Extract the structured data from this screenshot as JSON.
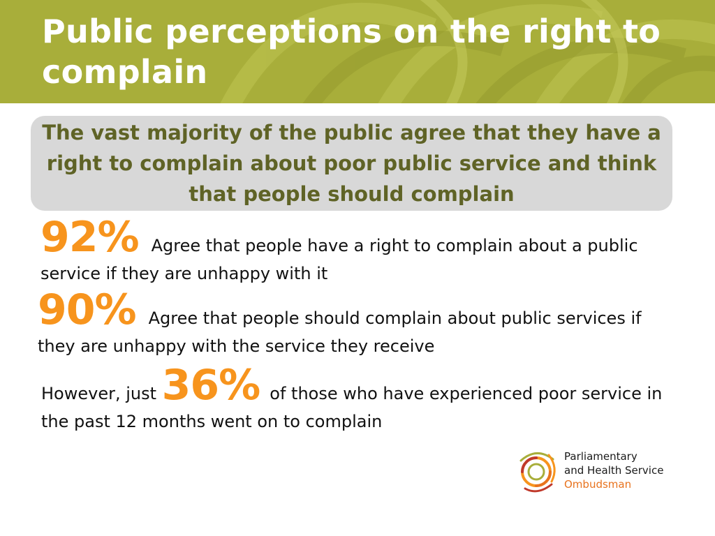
{
  "slide": {
    "title": "Public perceptions on the right to complain",
    "summary": "The vast majority of the public agree that they have a right to complain about poor public service and think that people should complain"
  },
  "stats": [
    {
      "percent": "92%",
      "text_after": "Agree that people have a right to complain about a public service if they are unhappy with it"
    },
    {
      "percent": "90%",
      "text_after": "Agree that people should complain about public services if they are unhappy with the service they receive"
    },
    {
      "text_before": "However, just",
      "percent": "36%",
      "text_after": "of those who have experienced poor service in the past 12 months went on to complain"
    }
  ],
  "logo": {
    "line1": "Parliamentary",
    "line2": "and Health Service",
    "line3": "Ombudsman"
  },
  "colors": {
    "header_green": "#a8ae3a",
    "summary_text": "#5f6326",
    "summary_bg": "#d8d8d8",
    "percent_orange": "#f7941d",
    "logo_accent": "#e8731e"
  }
}
